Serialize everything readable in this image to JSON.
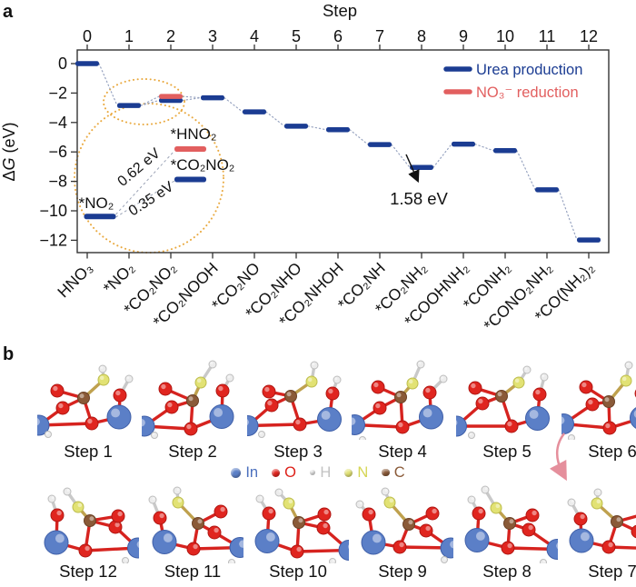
{
  "figure": {
    "panel_a_label": "a",
    "panel_b_label": "b"
  },
  "chart_data": {
    "type": "line",
    "style": "reaction-free-energy-diagram",
    "top_axis_label": "Step",
    "ylabel": "ΔG (eV)",
    "ylabel_parts": {
      "delta": "Δ",
      "symbol": "G",
      "units": " (eV)"
    },
    "x": [
      0,
      1,
      2,
      3,
      4,
      5,
      6,
      7,
      8,
      9,
      10,
      11,
      12
    ],
    "categories": [
      "HNO₃",
      "*NO₂",
      "*CO₂NO₂",
      "*CO₂NOOH",
      "*CO₂NO",
      "*CO₂NHO",
      "*CO₂NHOH",
      "*CO₂NH",
      "*CO₂NH₂",
      "*COOHNH₂",
      "*CONH₂",
      "*CONO₂NH₂",
      "*CO(NH₂)₂"
    ],
    "yticks": [
      0,
      -2,
      -4,
      -6,
      -8,
      -10,
      -12
    ],
    "ylim": [
      -12.9,
      0.9
    ],
    "grid": false,
    "legend_position": "top-right",
    "series": [
      {
        "name": "Urea production",
        "color": "#1b3c92",
        "values": [
          0,
          -2.85,
          -2.5,
          -2.32,
          -3.28,
          -4.25,
          -4.49,
          -5.5,
          -7.05,
          -5.47,
          -5.91,
          -8.57,
          -11.98
        ]
      },
      {
        "name": "NO₃⁻ reduction",
        "color": "#e25f5f",
        "values": [
          null,
          null,
          -2.23,
          null,
          null,
          null,
          null,
          null,
          null,
          null,
          null,
          null,
          null
        ]
      }
    ],
    "annotations": [
      {
        "text": "1.58 eV",
        "arrow_from_step": 8,
        "arrow_to_step": 9
      }
    ],
    "inset": {
      "magnified_steps": [
        1,
        2
      ],
      "levels": [
        {
          "label": "*NO₂",
          "series": "Urea production",
          "value": -2.85
        },
        {
          "label": "*HNO₂",
          "series": "NO₃⁻ reduction",
          "value": -2.23
        },
        {
          "label": "*CO₂NO₂",
          "series": "Urea production",
          "value": -2.5
        }
      ],
      "transition_labels": [
        "0.62 eV",
        "0.35 eV"
      ]
    }
  },
  "panel_b": {
    "top_row_labels": [
      "Step 1",
      "Step 2",
      "Step 3",
      "Step 4",
      "Step 5",
      "Step 6"
    ],
    "bottom_row_labels": [
      "Step 12",
      "Step 11",
      "Step 10",
      "Step 9",
      "Step 8",
      "Step 7"
    ],
    "atom_legend": [
      {
        "symbol": "In",
        "color": "#5b7fc7",
        "text_color": "#4a6fbd",
        "size": 11
      },
      {
        "symbol": "O",
        "color": "#e0251f",
        "text_color": "#dd2018",
        "size": 9
      },
      {
        "symbol": "H",
        "color": "#e6e6e6",
        "text_color": "#c2c2c2",
        "size": 6.5
      },
      {
        "symbol": "N",
        "color": "#e2e274",
        "text_color": "#d6d655",
        "size": 9
      },
      {
        "symbol": "C",
        "color": "#8a5a38",
        "text_color": "#8a5a38",
        "size": 8.5
      }
    ]
  }
}
